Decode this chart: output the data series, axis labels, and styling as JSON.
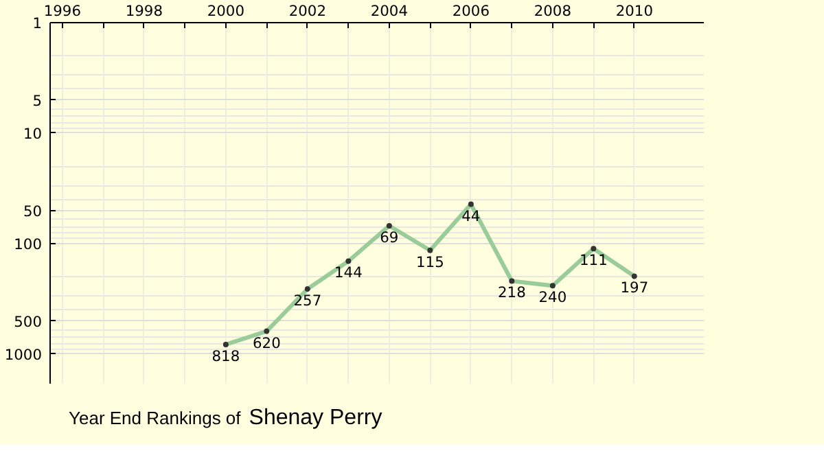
{
  "chart_data": {
    "type": "line",
    "title": "Year End Rankings of",
    "subtitle": "Shenay Perry",
    "x": [
      2000,
      2001,
      2002,
      2003,
      2004,
      2005,
      2006,
      2007,
      2008,
      2009,
      2010
    ],
    "series": [
      {
        "color": "#99cc99",
        "values": [
          818,
          620,
          257,
          144,
          69,
          115,
          44,
          218,
          240,
          111,
          197
        ]
      }
    ],
    "xlim": [
      1995.7,
      2011.7
    ],
    "xticks": [
      1996,
      {
        "value": 1997,
        "label": null
      },
      1998,
      {
        "value": 1999,
        "label": null
      },
      2000,
      {
        "value": 2001,
        "label": null
      },
      2002,
      {
        "value": 2003,
        "label": null
      },
      2004,
      {
        "value": 2005,
        "label": null
      },
      2006,
      {
        "value": 2007,
        "label": null
      },
      2008,
      {
        "value": 2009,
        "label": null
      },
      2010
    ],
    "ylim": [
      1850,
      1
    ],
    "yticks": [
      1,
      5,
      10,
      50,
      100,
      500,
      1000
    ],
    "log": "y",
    "grid": true,
    "marker": "circle",
    "line_style": "solid",
    "data_labels": true
  }
}
